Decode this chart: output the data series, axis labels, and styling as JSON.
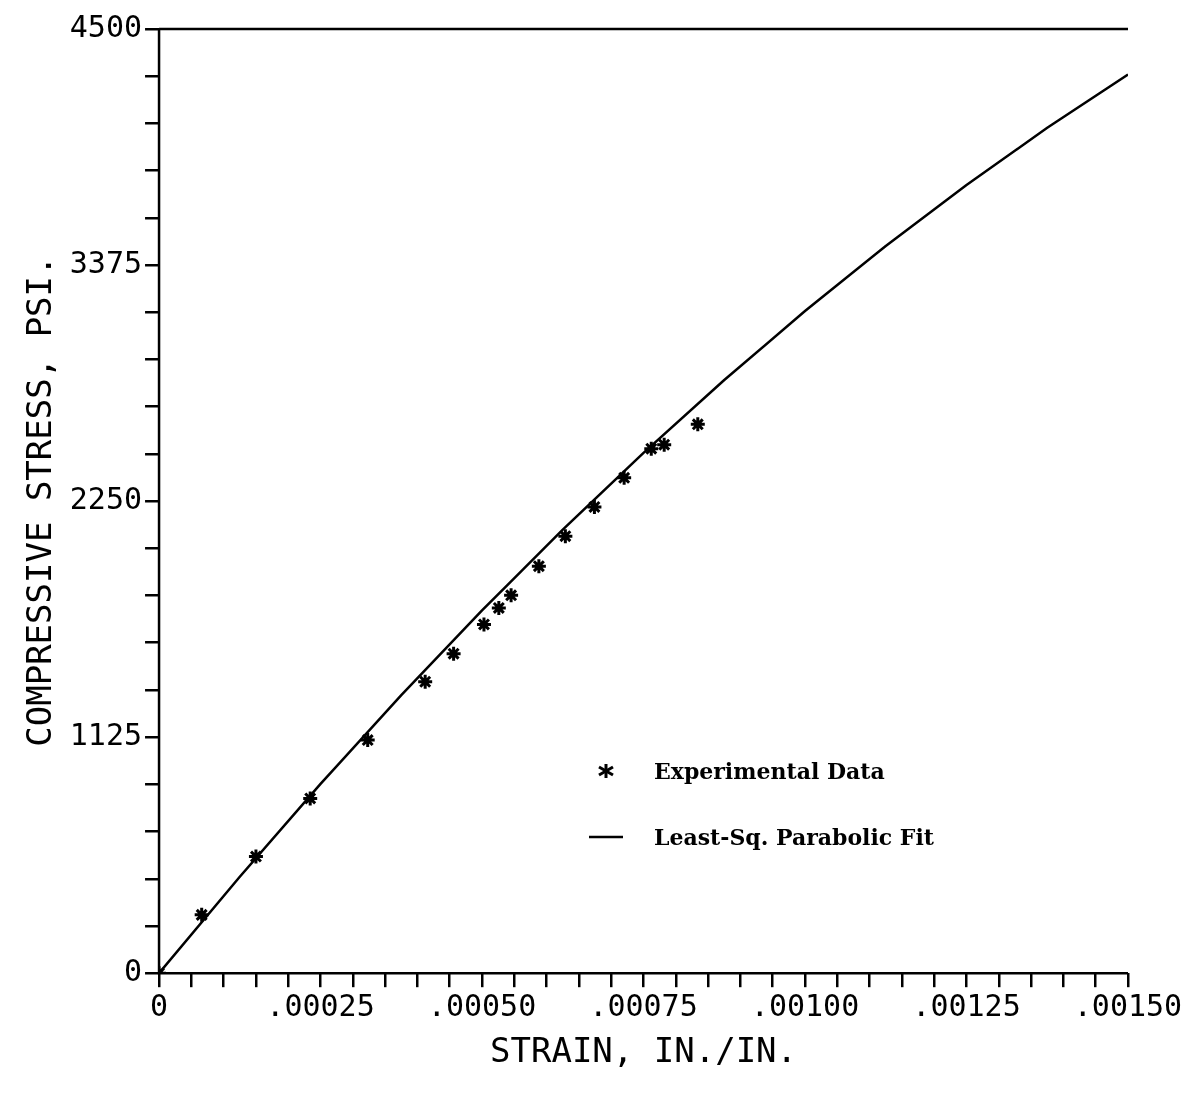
{
  "chart_data": {
    "type": "scatter",
    "xlabel": "STRAIN, IN./IN.",
    "ylabel": "COMPRESSIVE STRESS, PSI.",
    "xlim": [
      0,
      0.0015
    ],
    "ylim": [
      0,
      4500
    ],
    "xticks": [
      {
        "value": 0,
        "label": "0"
      },
      {
        "value": 5e-05,
        "label": null
      },
      {
        "value": 0.0001,
        "label": null
      },
      {
        "value": 0.00015,
        "label": null
      },
      {
        "value": 0.0002,
        "label": null
      },
      {
        "value": 0.00025,
        "label": ".00025"
      },
      {
        "value": 0.0003,
        "label": null
      },
      {
        "value": 0.00035,
        "label": null
      },
      {
        "value": 0.0004,
        "label": null
      },
      {
        "value": 0.00045,
        "label": null
      },
      {
        "value": 0.0005,
        "label": ".00050"
      },
      {
        "value": 0.00055,
        "label": null
      },
      {
        "value": 0.0006,
        "label": null
      },
      {
        "value": 0.00065,
        "label": null
      },
      {
        "value": 0.0007,
        "label": null
      },
      {
        "value": 0.00075,
        "label": ".00075"
      },
      {
        "value": 0.0008,
        "label": null
      },
      {
        "value": 0.00085,
        "label": null
      },
      {
        "value": 0.0009,
        "label": null
      },
      {
        "value": 0.00095,
        "label": null
      },
      {
        "value": 0.001,
        "label": ".00100"
      },
      {
        "value": 0.00105,
        "label": null
      },
      {
        "value": 0.0011,
        "label": null
      },
      {
        "value": 0.00115,
        "label": null
      },
      {
        "value": 0.0012,
        "label": null
      },
      {
        "value": 0.00125,
        "label": ".00125"
      },
      {
        "value": 0.0013,
        "label": null
      },
      {
        "value": 0.00135,
        "label": null
      },
      {
        "value": 0.0014,
        "label": null
      },
      {
        "value": 0.00145,
        "label": null
      },
      {
        "value": 0.0015,
        "label": ".00150"
      }
    ],
    "yticks": [
      0,
      {
        "value": 225,
        "label": null
      },
      {
        "value": 450,
        "label": null
      },
      {
        "value": 675,
        "label": null
      },
      {
        "value": 900,
        "label": null
      },
      1125,
      {
        "value": 1350,
        "label": null
      },
      {
        "value": 1575,
        "label": null
      },
      {
        "value": 1800,
        "label": null
      },
      {
        "value": 2025,
        "label": null
      },
      2250,
      {
        "value": 2475,
        "label": null
      },
      {
        "value": 2700,
        "label": null
      },
      {
        "value": 2925,
        "label": null
      },
      {
        "value": 3150,
        "label": null
      },
      3375,
      {
        "value": 3600,
        "label": null
      },
      {
        "value": 3825,
        "label": null
      },
      {
        "value": 4050,
        "label": null
      },
      {
        "value": 4275,
        "label": null
      },
      4500
    ],
    "legend": "bottom right",
    "series": [
      {
        "name": "Experimental Data",
        "marker": "cross",
        "color": "#000000",
        "x": [
          0,
          6.6e-05,
          0.00015,
          0.000234,
          0.000323,
          0.000412,
          0.000456,
          0.000503,
          0.000526,
          0.000545,
          0.000588,
          0.000629,
          0.000674,
          0.00072,
          0.000762,
          0.000782,
          0.000834
        ],
        "values": [
          0,
          278,
          556,
          833,
          1111,
          1389,
          1523,
          1662,
          1741,
          1801,
          1940,
          2083,
          2222,
          2361,
          2500,
          2519,
          2616
        ]
      },
      {
        "name": "Least-Sq. Parabolic Fit",
        "type": "line",
        "marker": "none",
        "line_style": "solid",
        "color": "#000000",
        "x": [
          0,
          0.000125,
          0.00025,
          0.000375,
          0.0005,
          0.000625,
          0.00075,
          0.000875,
          0.001,
          0.001125,
          0.00125,
          0.001375,
          0.0015
        ],
        "values": [
          0,
          460,
          902,
          1325,
          1729,
          2114,
          2480,
          2827,
          3156,
          3466,
          3757,
          4029,
          4283
        ]
      }
    ]
  }
}
